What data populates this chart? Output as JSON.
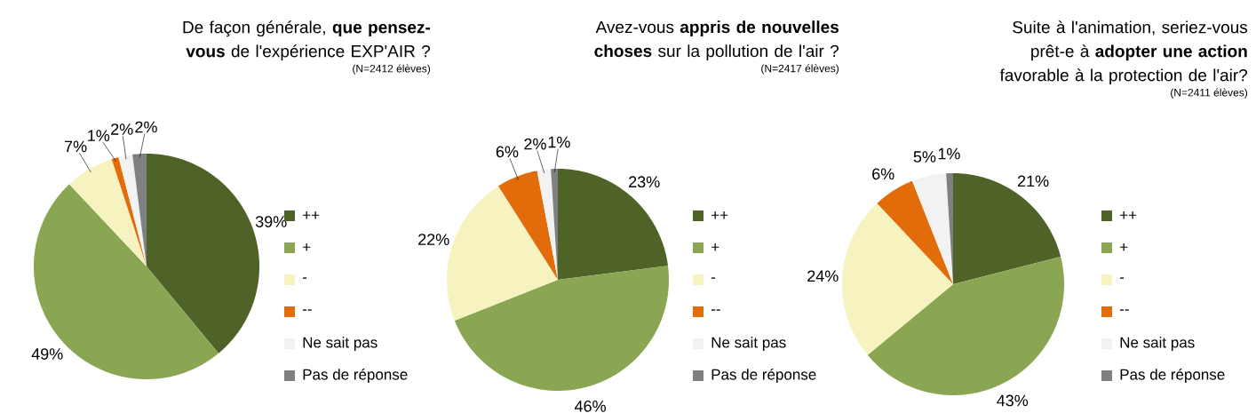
{
  "chart_data": [
    {
      "type": "pie",
      "title": "De façon générale, **que pensez-vous** de l'expérience EXP'AIR ?",
      "subtitle": "(N=2412 élèves)",
      "categories": [
        "++",
        "+",
        "-",
        "--",
        "Ne sait pas",
        "Pas de réponse"
      ],
      "values": [
        39,
        49,
        7,
        1,
        2,
        2
      ],
      "value_labels": [
        "39%",
        "49%",
        "7%",
        "1%",
        "2%",
        "2%"
      ],
      "colors": [
        "#4f6228",
        "#8aa653",
        "#f7f3c0",
        "#e36c0a",
        "#f2f2f2",
        "#808080"
      ],
      "legend": "right"
    },
    {
      "type": "pie",
      "title": "Avez-vous **appris de nouvelles choses** sur la pollution de l'air ?",
      "subtitle": "(N=2417 élèves)",
      "categories": [
        "++",
        "+",
        "-",
        "--",
        "Ne sait pas",
        "Pas de réponse"
      ],
      "values": [
        23,
        46,
        22,
        6,
        2,
        1
      ],
      "value_labels": [
        "23%",
        "46%",
        "22%",
        "6%",
        "2%",
        "1%"
      ],
      "colors": [
        "#4f6228",
        "#8aa653",
        "#f7f3c0",
        "#e36c0a",
        "#f2f2f2",
        "#808080"
      ],
      "legend": "right"
    },
    {
      "type": "pie",
      "title": "Suite à l'animation, seriez-vous prêt-e à **adopter une action** favorable à la protection de l'air?",
      "subtitle": "(N=2411 élèves)",
      "categories": [
        "++",
        "+",
        "-",
        "--",
        "Ne sait pas",
        "Pas de réponse"
      ],
      "values": [
        21,
        43,
        24,
        6,
        5,
        1
      ],
      "value_labels": [
        "21%",
        "43%",
        "24%",
        "6%",
        "5%",
        "1%"
      ],
      "colors": [
        "#4f6228",
        "#8aa653",
        "#f7f3c0",
        "#e36c0a",
        "#f2f2f2",
        "#808080"
      ],
      "legend": "right"
    }
  ]
}
